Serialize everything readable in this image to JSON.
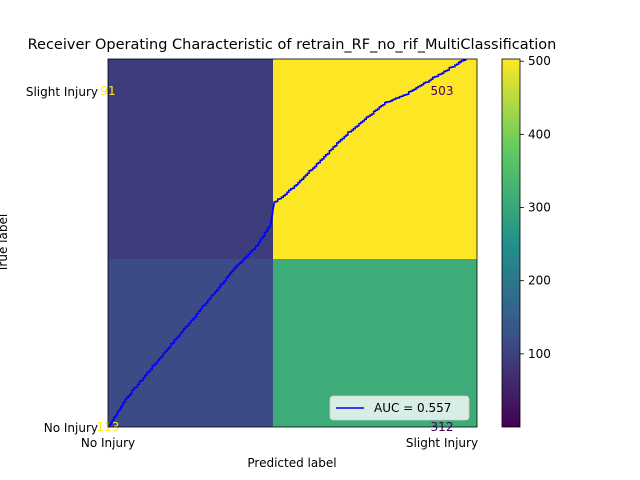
{
  "chart_data": {
    "type": "heatmap",
    "title": "Receiver Operating Characteristic of retrain_RF_no_rif_MultiClassification",
    "xlabel": "Predicted label",
    "ylabel": "True label",
    "x_categories": [
      "No Injury",
      "Slight Injury"
    ],
    "y_categories": [
      "No Injury",
      "Slight Injury"
    ],
    "matrix": [
      [
        113,
        312
      ],
      [
        91,
        503
      ]
    ],
    "cell_labels": [
      "91",
      "503",
      "113",
      "312"
    ],
    "colormap": "viridis",
    "colorbar": {
      "min": 0,
      "max": 503,
      "ticks": [
        100,
        200,
        300,
        400,
        500
      ],
      "tick_labels": [
        "100",
        "200",
        "300",
        "400",
        "500"
      ]
    },
    "roc_curve": {
      "color": "#0000ff",
      "legend": "AUC = 0.557",
      "legend_position": "lower-right",
      "auc": 0.557,
      "points": [
        [
          0,
          0
        ],
        [
          0.02,
          0.03
        ],
        [
          0.05,
          0.08
        ],
        [
          0.1,
          0.14
        ],
        [
          0.15,
          0.2
        ],
        [
          0.2,
          0.26
        ],
        [
          0.25,
          0.32
        ],
        [
          0.3,
          0.38
        ],
        [
          0.35,
          0.44
        ],
        [
          0.4,
          0.49
        ],
        [
          0.44,
          0.55
        ],
        [
          0.45,
          0.61
        ],
        [
          0.5,
          0.65
        ],
        [
          0.55,
          0.7
        ],
        [
          0.6,
          0.75
        ],
        [
          0.65,
          0.8
        ],
        [
          0.7,
          0.84
        ],
        [
          0.75,
          0.88
        ],
        [
          0.8,
          0.9
        ],
        [
          0.85,
          0.93
        ],
        [
          0.9,
          0.96
        ],
        [
          0.95,
          0.99
        ],
        [
          0.97,
          1.0
        ]
      ]
    }
  }
}
